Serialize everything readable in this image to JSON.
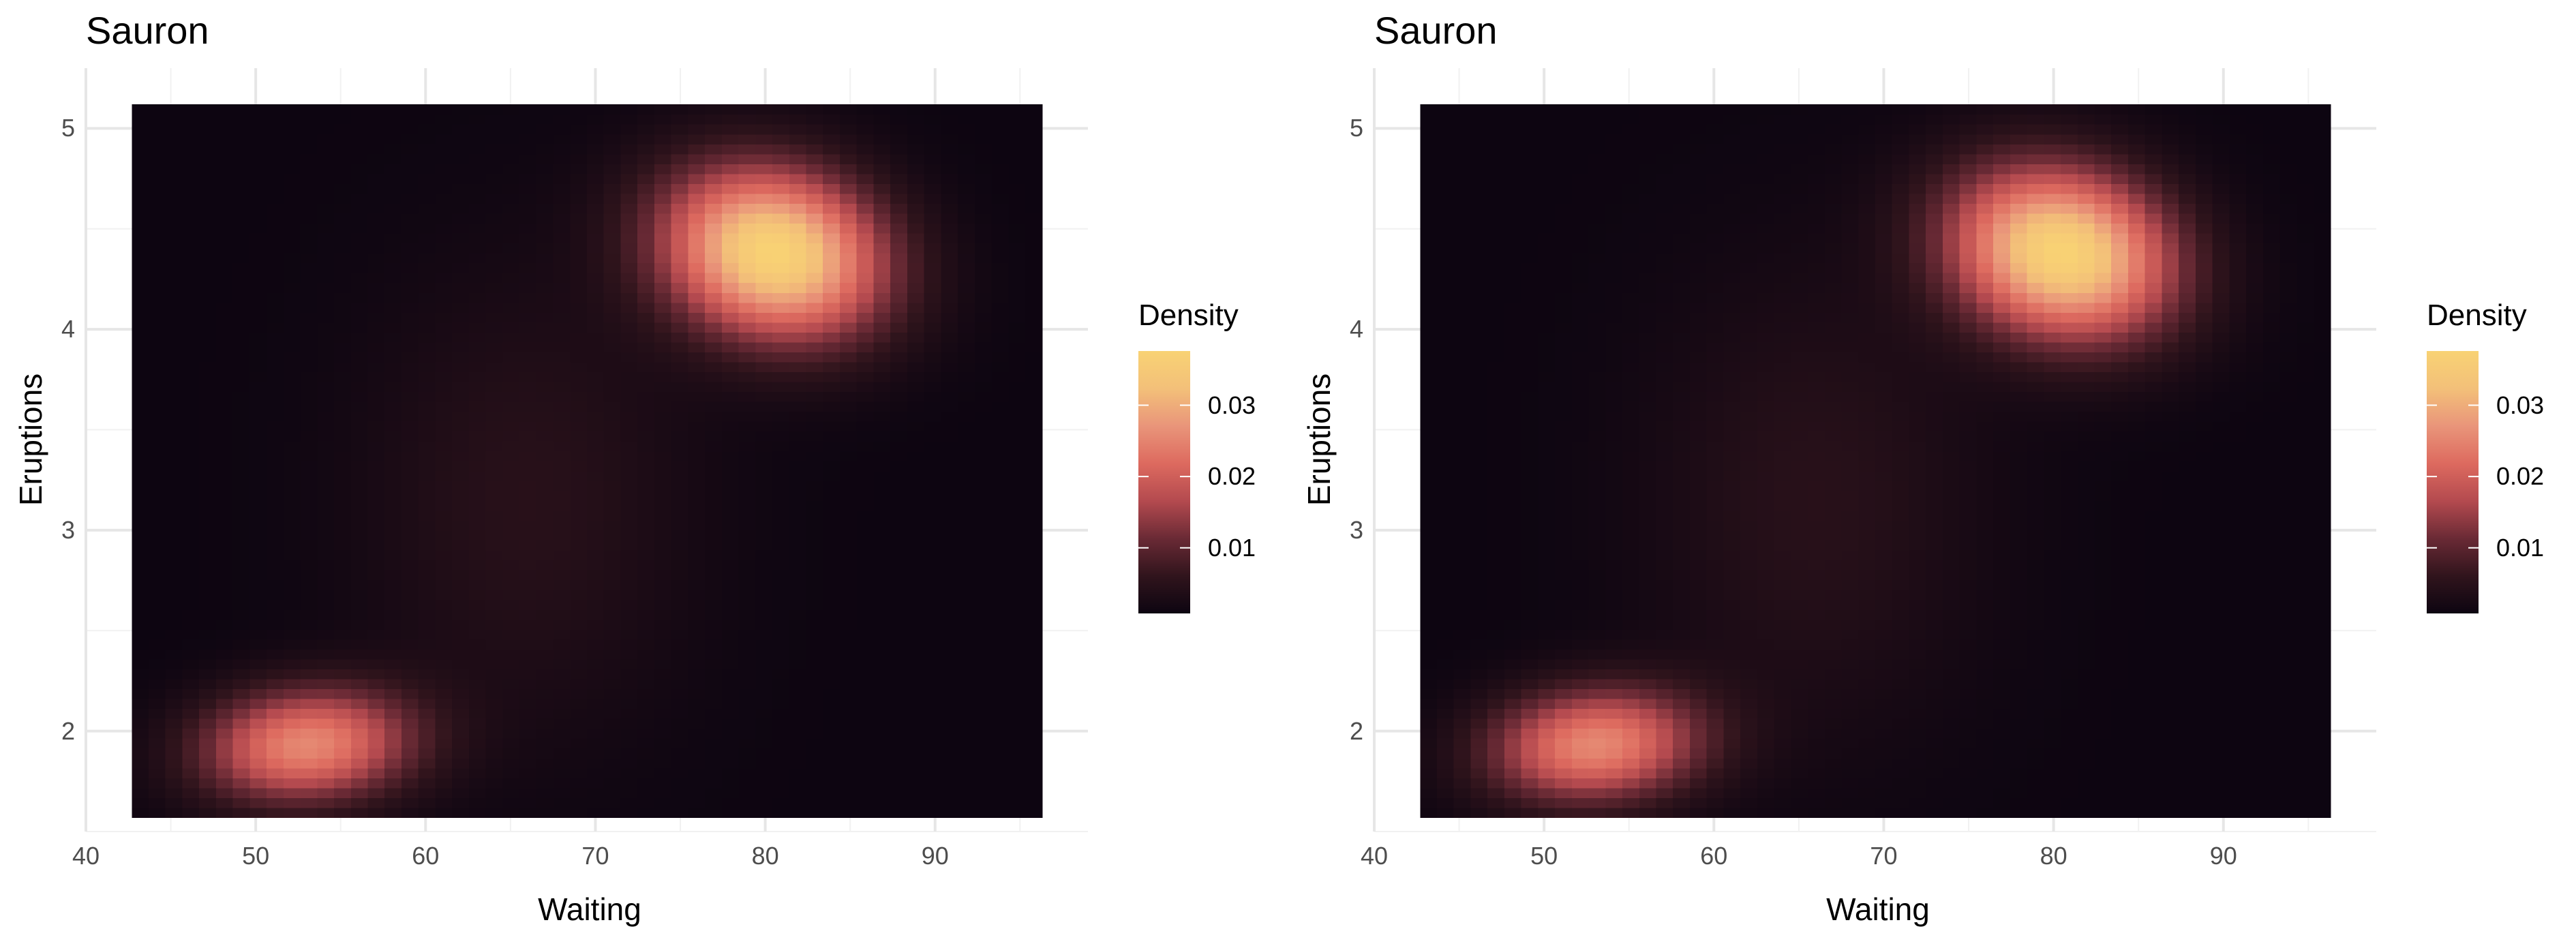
{
  "chart_data": [
    {
      "type": "heatmap",
      "title": "Sauron",
      "xlabel": "Waiting",
      "ylabel": "Eruptions",
      "xlim": [
        40,
        99
      ],
      "ylim": [
        1.5,
        5.3
      ],
      "data_extent": {
        "x": [
          42.7,
          96.3
        ],
        "y": [
          1.57,
          5.12
        ]
      },
      "x_ticks": [
        "40",
        "50",
        "60",
        "70",
        "80",
        "90"
      ],
      "y_ticks": [
        "2",
        "3",
        "4",
        "5"
      ],
      "grid": true,
      "legend": {
        "title": "Density",
        "placement": "right",
        "range": [
          0.0008,
          0.0376
        ],
        "labels": [
          "0.01",
          "0.02",
          "0.03"
        ],
        "colors": [
          "#0d0511",
          "#30141c",
          "#6a2a35",
          "#b44a4f",
          "#dd6a5f",
          "#e9957a",
          "#f3c079",
          "#f8d274"
        ]
      },
      "density_peaks": [
        {
          "x": 80.5,
          "y": 4.38,
          "value": 0.0376
        },
        {
          "x": 53.0,
          "y": 1.93,
          "value": 0.0255
        }
      ]
    },
    {
      "type": "heatmap",
      "title": "Sauron",
      "xlabel": "Waiting",
      "ylabel": "Eruptions",
      "xlim": [
        40,
        99
      ],
      "ylim": [
        1.5,
        5.3
      ],
      "data_extent": {
        "x": [
          42.7,
          96.3
        ],
        "y": [
          1.57,
          5.12
        ]
      },
      "x_ticks": [
        "40",
        "50",
        "60",
        "70",
        "80",
        "90"
      ],
      "y_ticks": [
        "2",
        "3",
        "4",
        "5"
      ],
      "grid": true,
      "legend": {
        "title": "Density",
        "placement": "right",
        "range": [
          0.0008,
          0.0376
        ],
        "labels": [
          "0.01",
          "0.02",
          "0.03"
        ],
        "colors": [
          "#0d0511",
          "#30141c",
          "#6a2a35",
          "#b44a4f",
          "#dd6a5f",
          "#e9957a",
          "#f3c079",
          "#f8d274"
        ]
      },
      "density_peaks": [
        {
          "x": 80.5,
          "y": 4.38,
          "value": 0.0376
        },
        {
          "x": 53.0,
          "y": 1.93,
          "value": 0.0255
        }
      ]
    }
  ]
}
